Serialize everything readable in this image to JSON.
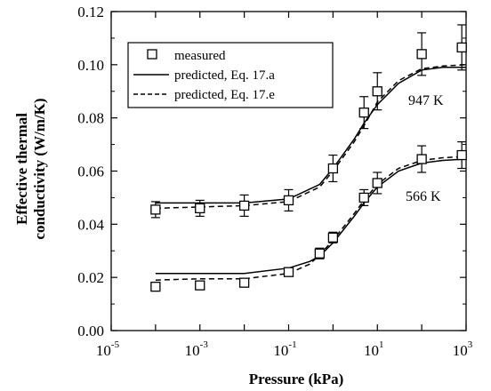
{
  "chart_data": {
    "type": "scatter",
    "title": "",
    "xlabel": "Pressure  (kPa)",
    "ylabel_line1": "Effective thermal",
    "ylabel_line2": "conductivity  (W/m/K)",
    "xscale": "log",
    "xlim": [
      1e-05,
      1000
    ],
    "ylim": [
      0,
      0.12
    ],
    "grid": false,
    "legend_position": "top-left",
    "x_ticks": [
      {
        "base": "10",
        "exp": "-5",
        "value": 1e-05
      },
      {
        "base": "10",
        "exp": "-3",
        "value": 0.001
      },
      {
        "base": "10",
        "exp": "-1",
        "value": 0.1
      },
      {
        "base": "10",
        "exp": "1",
        "value": 10
      },
      {
        "base": "10",
        "exp": "3",
        "value": 1000
      }
    ],
    "y_ticks": [
      {
        "label": "0.00",
        "value": 0
      },
      {
        "label": "0.02",
        "value": 0.02
      },
      {
        "label": "0.04",
        "value": 0.04
      },
      {
        "label": "0.06",
        "value": 0.06
      },
      {
        "label": "0.08",
        "value": 0.08
      },
      {
        "label": "0.10",
        "value": 0.1
      },
      {
        "label": "0.12",
        "value": 0.12
      }
    ],
    "legend": [
      {
        "label": "measured",
        "style": "square-marker"
      },
      {
        "label": "predicted, Eq. 17.a",
        "style": "solid"
      },
      {
        "label": "predicted, Eq. 17.e",
        "style": "dashed"
      }
    ],
    "annotations": [
      {
        "text": "947 K",
        "series": "947K"
      },
      {
        "text": "566 K",
        "series": "566K"
      }
    ],
    "series": [
      {
        "id": "947K",
        "measured": [
          {
            "x": 0.0001,
            "y": 0.0455,
            "err": 0.003
          },
          {
            "x": 0.001,
            "y": 0.046,
            "err": 0.003
          },
          {
            "x": 0.01,
            "y": 0.047,
            "err": 0.004
          },
          {
            "x": 0.1,
            "y": 0.049,
            "err": 0.004
          },
          {
            "x": 1,
            "y": 0.061,
            "err": 0.005
          },
          {
            "x": 5,
            "y": 0.082,
            "err": 0.006
          },
          {
            "x": 10,
            "y": 0.09,
            "err": 0.007
          },
          {
            "x": 100,
            "y": 0.104,
            "err": 0.008
          },
          {
            "x": 800,
            "y": 0.1065,
            "err": 0.0085
          }
        ],
        "predicted_17a": [
          {
            "x": 0.0001,
            "y": 0.048
          },
          {
            "x": 0.001,
            "y": 0.048
          },
          {
            "x": 0.01,
            "y": 0.048
          },
          {
            "x": 0.1,
            "y": 0.0495
          },
          {
            "x": 0.5,
            "y": 0.055
          },
          {
            "x": 1,
            "y": 0.061
          },
          {
            "x": 3,
            "y": 0.072
          },
          {
            "x": 5,
            "y": 0.078
          },
          {
            "x": 10,
            "y": 0.085
          },
          {
            "x": 30,
            "y": 0.093
          },
          {
            "x": 100,
            "y": 0.098
          },
          {
            "x": 300,
            "y": 0.099
          },
          {
            "x": 1000,
            "y": 0.099
          }
        ],
        "predicted_17e": [
          {
            "x": 0.0001,
            "y": 0.046
          },
          {
            "x": 0.001,
            "y": 0.0465
          },
          {
            "x": 0.01,
            "y": 0.047
          },
          {
            "x": 0.1,
            "y": 0.0485
          },
          {
            "x": 0.5,
            "y": 0.054
          },
          {
            "x": 1,
            "y": 0.06
          },
          {
            "x": 3,
            "y": 0.071
          },
          {
            "x": 5,
            "y": 0.077
          },
          {
            "x": 10,
            "y": 0.086
          },
          {
            "x": 30,
            "y": 0.094
          },
          {
            "x": 100,
            "y": 0.0985
          },
          {
            "x": 300,
            "y": 0.0995
          },
          {
            "x": 1000,
            "y": 0.1
          }
        ]
      },
      {
        "id": "566K",
        "measured": [
          {
            "x": 0.0001,
            "y": 0.0165,
            "err": 0
          },
          {
            "x": 0.001,
            "y": 0.017,
            "err": 0
          },
          {
            "x": 0.01,
            "y": 0.018,
            "err": 0
          },
          {
            "x": 0.1,
            "y": 0.022,
            "err": 0.0015
          },
          {
            "x": 0.5,
            "y": 0.029,
            "err": 0.002
          },
          {
            "x": 1,
            "y": 0.035,
            "err": 0.002
          },
          {
            "x": 5,
            "y": 0.05,
            "err": 0.003
          },
          {
            "x": 10,
            "y": 0.0555,
            "err": 0.004
          },
          {
            "x": 100,
            "y": 0.0645,
            "err": 0.005
          },
          {
            "x": 800,
            "y": 0.066,
            "err": 0.005
          }
        ],
        "predicted_17a": [
          {
            "x": 0.0001,
            "y": 0.0215
          },
          {
            "x": 0.001,
            "y": 0.0215
          },
          {
            "x": 0.01,
            "y": 0.0215
          },
          {
            "x": 0.1,
            "y": 0.0235
          },
          {
            "x": 0.3,
            "y": 0.026
          },
          {
            "x": 0.5,
            "y": 0.028
          },
          {
            "x": 1,
            "y": 0.033
          },
          {
            "x": 3,
            "y": 0.043
          },
          {
            "x": 5,
            "y": 0.048
          },
          {
            "x": 10,
            "y": 0.054
          },
          {
            "x": 30,
            "y": 0.06
          },
          {
            "x": 100,
            "y": 0.063
          },
          {
            "x": 300,
            "y": 0.064
          },
          {
            "x": 1000,
            "y": 0.0645
          }
        ],
        "predicted_17e": [
          {
            "x": 0.0001,
            "y": 0.019
          },
          {
            "x": 0.001,
            "y": 0.0195
          },
          {
            "x": 0.01,
            "y": 0.0195
          },
          {
            "x": 0.1,
            "y": 0.0215
          },
          {
            "x": 0.3,
            "y": 0.025
          },
          {
            "x": 0.5,
            "y": 0.0285
          },
          {
            "x": 1,
            "y": 0.034
          },
          {
            "x": 3,
            "y": 0.044
          },
          {
            "x": 5,
            "y": 0.049
          },
          {
            "x": 10,
            "y": 0.055
          },
          {
            "x": 30,
            "y": 0.061
          },
          {
            "x": 100,
            "y": 0.064
          },
          {
            "x": 300,
            "y": 0.065
          },
          {
            "x": 1000,
            "y": 0.0655
          }
        ]
      }
    ]
  }
}
